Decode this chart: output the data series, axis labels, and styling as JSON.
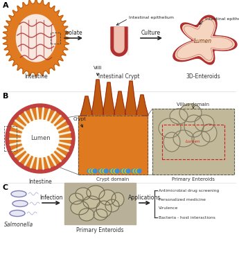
{
  "bg_color": "#ffffff",
  "section_A": {
    "label": "A",
    "orange": "#e07a20",
    "dark_orange": "#c05a10",
    "red": "#b03030",
    "light_red": "#e09080",
    "peach": "#f5d5c0",
    "label_intestine": "Intestine",
    "label_crypt": "Intestinal Crypt",
    "label_enteroid": "3D-Enteroids",
    "label_isolate": "Isolate",
    "label_culture": "Culture",
    "label_epi1": "Intestinal epithelium",
    "label_epi2": "Intestinal epithelium",
    "label_lumen": "Lumen"
  },
  "section_B": {
    "label": "B",
    "orange": "#e07a20",
    "dark_orange": "#c05a10",
    "red": "#c04040",
    "white": "#ffffff",
    "villi_white": "#f8f5e0",
    "blue": "#4090d0",
    "yellow": "#d0c020",
    "label_lumen": "Lumen",
    "label_intestine": "Intestine",
    "label_villi": "Villi",
    "label_crypt": "Crypt",
    "label_villus_domain": "Villus domain",
    "label_crypt_domain": "Crypt domain",
    "label_primary": "Primary Enteroids"
  },
  "section_C": {
    "label": "C",
    "sal_edge": "#8080b8",
    "sal_fill": "#e8e8f5",
    "label_salmonella": "Salmonella",
    "label_infection": "Infection",
    "label_primary": "Primary Enteroids",
    "label_applications": "Applications",
    "apps": [
      "Antimicrobial drug screening",
      "Personalized medicine",
      "Virulence",
      "Bacteria - host interactions"
    ]
  }
}
